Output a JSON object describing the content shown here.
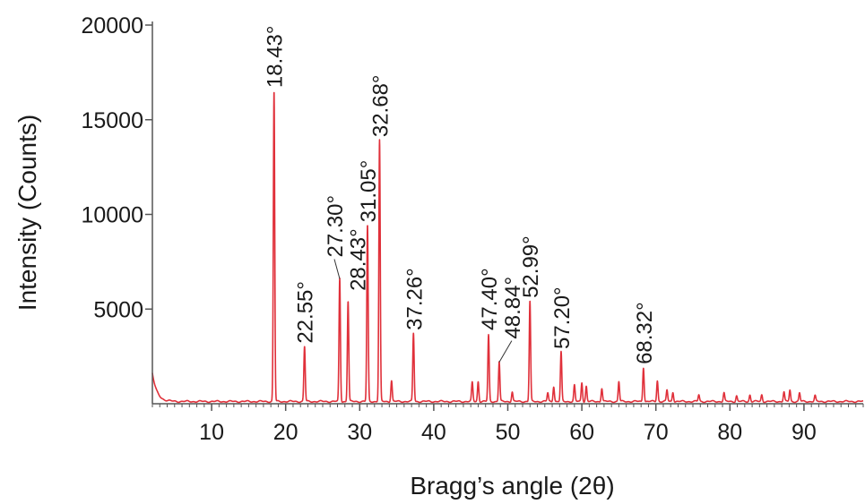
{
  "chart_data": {
    "type": "line",
    "title": "",
    "xlabel": "Bragg’s  angle (2θ)",
    "ylabel": "Intensity (Counts)",
    "xlim": [
      2,
      98
    ],
    "ylim": [
      0,
      20000
    ],
    "x_ticks": [
      10,
      20,
      30,
      40,
      50,
      60,
      70,
      80,
      90
    ],
    "y_ticks": [
      5000,
      10000,
      15000,
      20000
    ],
    "grid": false,
    "legend": "none",
    "line_color": "#e0303a",
    "peaks": [
      {
        "x": 18.43,
        "y": 16400,
        "label": "18.43°"
      },
      {
        "x": 22.55,
        "y": 2900,
        "label": "22.55°"
      },
      {
        "x": 27.3,
        "y": 6500,
        "label": "27.30°"
      },
      {
        "x": 28.43,
        "y": 5300,
        "label": "28.43°"
      },
      {
        "x": 31.05,
        "y": 9300,
        "label": "31.05°"
      },
      {
        "x": 32.68,
        "y": 13800,
        "label": "32.68°"
      },
      {
        "x": 37.26,
        "y": 3600,
        "label": "37.26°"
      },
      {
        "x": 47.4,
        "y": 3500,
        "label": "47.40°"
      },
      {
        "x": 48.84,
        "y": 2100,
        "label": "48.84°"
      },
      {
        "x": 52.99,
        "y": 5300,
        "label": "52.99°"
      },
      {
        "x": 57.2,
        "y": 2600,
        "label": "57.20°"
      },
      {
        "x": 68.32,
        "y": 1800,
        "label": "68.32°"
      }
    ],
    "minor_peaks": [
      {
        "x": 34.3,
        "y": 1100
      },
      {
        "x": 45.2,
        "y": 1000
      },
      {
        "x": 46.0,
        "y": 1050
      },
      {
        "x": 50.6,
        "y": 500
      },
      {
        "x": 55.4,
        "y": 450
      },
      {
        "x": 56.2,
        "y": 800
      },
      {
        "x": 59.0,
        "y": 850
      },
      {
        "x": 60.0,
        "y": 1000
      },
      {
        "x": 60.6,
        "y": 800
      },
      {
        "x": 62.7,
        "y": 700
      },
      {
        "x": 65.0,
        "y": 1050
      },
      {
        "x": 70.2,
        "y": 1100
      },
      {
        "x": 71.5,
        "y": 600
      },
      {
        "x": 72.3,
        "y": 500
      },
      {
        "x": 75.8,
        "y": 350
      },
      {
        "x": 79.2,
        "y": 450
      },
      {
        "x": 80.9,
        "y": 300
      },
      {
        "x": 82.7,
        "y": 350
      },
      {
        "x": 84.3,
        "y": 350
      },
      {
        "x": 87.3,
        "y": 500
      },
      {
        "x": 88.1,
        "y": 600
      },
      {
        "x": 89.4,
        "y": 450
      },
      {
        "x": 91.5,
        "y": 300
      }
    ]
  }
}
